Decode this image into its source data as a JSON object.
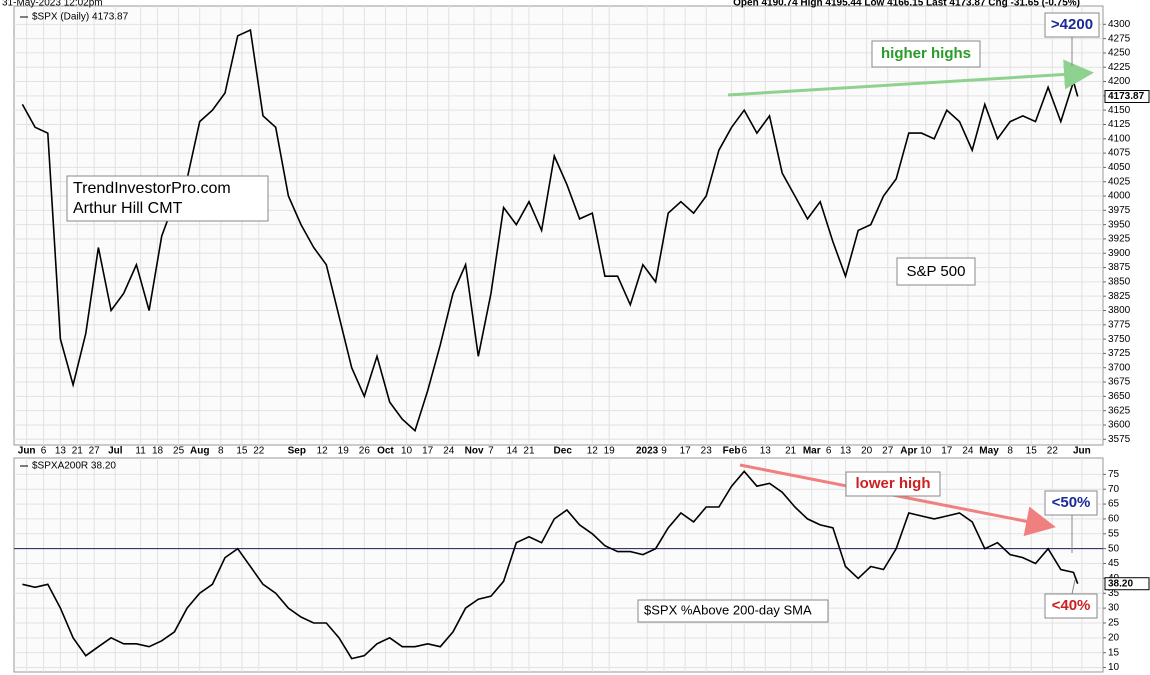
{
  "header": {
    "date": "31-May-2023 12:02pm",
    "quote": "Open 4190.74 High 4195.44 Low 4166.15 Last 4173.87 Chg -31.65 (-0.75%)"
  },
  "chart_data": [
    {
      "type": "line",
      "x": [
        0,
        3,
        6,
        9,
        12,
        15,
        18,
        21,
        24,
        27,
        30,
        33,
        36,
        39,
        42,
        45,
        48,
        51,
        54,
        57,
        60,
        63,
        66,
        69,
        72,
        75,
        78,
        81,
        84,
        87,
        90,
        93,
        96,
        99,
        102,
        105,
        108,
        111,
        114,
        117,
        120,
        123,
        126,
        129,
        132,
        135,
        138,
        141,
        144,
        147,
        150,
        153,
        156,
        159,
        162,
        165,
        168,
        171,
        174,
        177,
        180,
        183,
        186,
        189,
        192,
        195,
        198,
        201,
        204,
        207,
        210,
        213,
        216,
        219,
        222,
        225,
        228,
        231,
        234,
        237,
        240,
        243,
        246,
        249,
        250
      ],
      "series": [
        {
          "name": "$SPX (Daily) 4173.87",
          "color": "#000000",
          "values": [
            4160,
            4120,
            4110,
            3750,
            3670,
            3760,
            3910,
            3800,
            3830,
            3880,
            3800,
            3930,
            3990,
            4030,
            4130,
            4150,
            4180,
            4280,
            4290,
            4140,
            4120,
            4000,
            3950,
            3910,
            3880,
            3790,
            3700,
            3650,
            3720,
            3640,
            3610,
            3590,
            3660,
            3740,
            3830,
            3880,
            3720,
            3830,
            3980,
            3950,
            3990,
            3940,
            4070,
            4020,
            3960,
            3970,
            3860,
            3860,
            3810,
            3880,
            3850,
            3970,
            3990,
            3970,
            4000,
            4080,
            4120,
            4150,
            4110,
            4140,
            4040,
            4000,
            3960,
            3990,
            3920,
            3860,
            3940,
            3950,
            4000,
            4030,
            4110,
            4110,
            4100,
            4150,
            4130,
            4080,
            4160,
            4100,
            4130,
            4140,
            4130,
            4190,
            4130,
            4200,
            4173.87
          ]
        }
      ],
      "xlim": [
        -2,
        256
      ],
      "xticks": [
        {
          "value": 1,
          "label": "Jun"
        },
        {
          "value": 5,
          "label": "6"
        },
        {
          "value": 9,
          "label": "13"
        },
        {
          "value": 13,
          "label": "21"
        },
        {
          "value": 17,
          "label": "27"
        },
        {
          "value": 22,
          "label": "Jul"
        },
        {
          "value": 28,
          "label": "11"
        },
        {
          "value": 32,
          "label": "18"
        },
        {
          "value": 37,
          "label": "25"
        },
        {
          "value": 42,
          "label": "Aug"
        },
        {
          "value": 47,
          "label": "8"
        },
        {
          "value": 52,
          "label": "15"
        },
        {
          "value": 56,
          "label": "22"
        },
        {
          "value": 65,
          "label": "Sep"
        },
        {
          "value": 71,
          "label": "12"
        },
        {
          "value": 76,
          "label": "19"
        },
        {
          "value": 81,
          "label": "26"
        },
        {
          "value": 86,
          "label": "Oct"
        },
        {
          "value": 91,
          "label": "10"
        },
        {
          "value": 96,
          "label": "17"
        },
        {
          "value": 101,
          "label": "24"
        },
        {
          "value": 107,
          "label": "Nov"
        },
        {
          "value": 111,
          "label": "7"
        },
        {
          "value": 116,
          "label": "14"
        },
        {
          "value": 120,
          "label": "21"
        },
        {
          "value": 128,
          "label": "Dec"
        },
        {
          "value": 135,
          "label": "12"
        },
        {
          "value": 139,
          "label": "19"
        },
        {
          "value": 148,
          "label": "2023"
        },
        {
          "value": 152,
          "label": "9"
        },
        {
          "value": 157,
          "label": "17"
        },
        {
          "value": 162,
          "label": "23"
        },
        {
          "value": 168,
          "label": "Feb"
        },
        {
          "value": 171,
          "label": "6"
        },
        {
          "value": 176,
          "label": "13"
        },
        {
          "value": 182,
          "label": "21"
        },
        {
          "value": 187,
          "label": "Mar"
        },
        {
          "value": 191,
          "label": "6"
        },
        {
          "value": 195,
          "label": "13"
        },
        {
          "value": 200,
          "label": "20"
        },
        {
          "value": 205,
          "label": "27"
        },
        {
          "value": 210,
          "label": "Apr"
        },
        {
          "value": 214,
          "label": "10"
        },
        {
          "value": 219,
          "label": "17"
        },
        {
          "value": 224,
          "label": "24"
        },
        {
          "value": 229,
          "label": "May"
        },
        {
          "value": 234,
          "label": "8"
        },
        {
          "value": 239,
          "label": "15"
        },
        {
          "value": 244,
          "label": "22"
        },
        {
          "value": 251,
          "label": "Jun"
        }
      ],
      "ylim": [
        3565,
        4332
      ],
      "yticks": [
        3575,
        3600,
        3625,
        3650,
        3675,
        3700,
        3725,
        3750,
        3775,
        3800,
        3825,
        3850,
        3875,
        3900,
        3925,
        3950,
        3975,
        4000,
        4025,
        4050,
        4075,
        4100,
        4125,
        4150,
        4175,
        4200,
        4225,
        4250,
        4275,
        4300
      ],
      "grid": true,
      "annotations": [
        "higher highs",
        ">4200",
        "S&P 500",
        "TrendInvestorPro.com",
        "Arthur Hill CMT"
      ]
    },
    {
      "type": "line",
      "x": [
        0,
        3,
        6,
        9,
        12,
        15,
        18,
        21,
        24,
        27,
        30,
        33,
        36,
        39,
        42,
        45,
        48,
        51,
        54,
        57,
        60,
        63,
        66,
        69,
        72,
        75,
        78,
        81,
        84,
        87,
        90,
        93,
        96,
        99,
        102,
        105,
        108,
        111,
        114,
        117,
        120,
        123,
        126,
        129,
        132,
        135,
        138,
        141,
        144,
        147,
        150,
        153,
        156,
        159,
        162,
        165,
        168,
        171,
        174,
        177,
        180,
        183,
        186,
        189,
        192,
        195,
        198,
        201,
        204,
        207,
        210,
        213,
        216,
        219,
        222,
        225,
        228,
        231,
        234,
        237,
        240,
        243,
        246,
        249,
        250
      ],
      "series": [
        {
          "name": "$SPXA200R 38.20",
          "color": "#000000",
          "values": [
            38,
            37,
            38,
            30,
            20,
            14,
            17,
            20,
            18,
            18,
            17,
            19,
            22,
            30,
            35,
            38,
            47,
            50,
            44,
            38,
            35,
            30,
            27,
            25,
            25,
            20,
            13,
            14,
            18,
            20,
            17,
            17,
            18,
            17,
            22,
            30,
            33,
            34,
            39,
            52,
            54,
            52,
            60,
            63,
            58,
            55,
            51,
            49,
            49,
            48,
            50,
            57,
            62,
            59,
            64,
            64,
            71,
            76,
            71,
            72,
            69,
            64,
            60,
            58,
            57,
            44,
            40,
            44,
            43,
            50,
            62,
            61,
            60,
            61,
            62,
            59,
            50,
            52,
            48,
            47,
            45,
            50,
            43,
            42,
            38.2
          ]
        }
      ],
      "last_value_label": "38.20",
      "xlim": [
        -2,
        256
      ],
      "ylim": [
        8.5,
        80.5
      ],
      "yticks": [
        10,
        15,
        20,
        25,
        30,
        35,
        40,
        45,
        50,
        55,
        60,
        65,
        70,
        75
      ],
      "hline": 50,
      "grid": true,
      "annotations": [
        "lower high",
        "<50%",
        "<40%",
        "$SPX %Above 200-day SMA"
      ]
    }
  ]
}
